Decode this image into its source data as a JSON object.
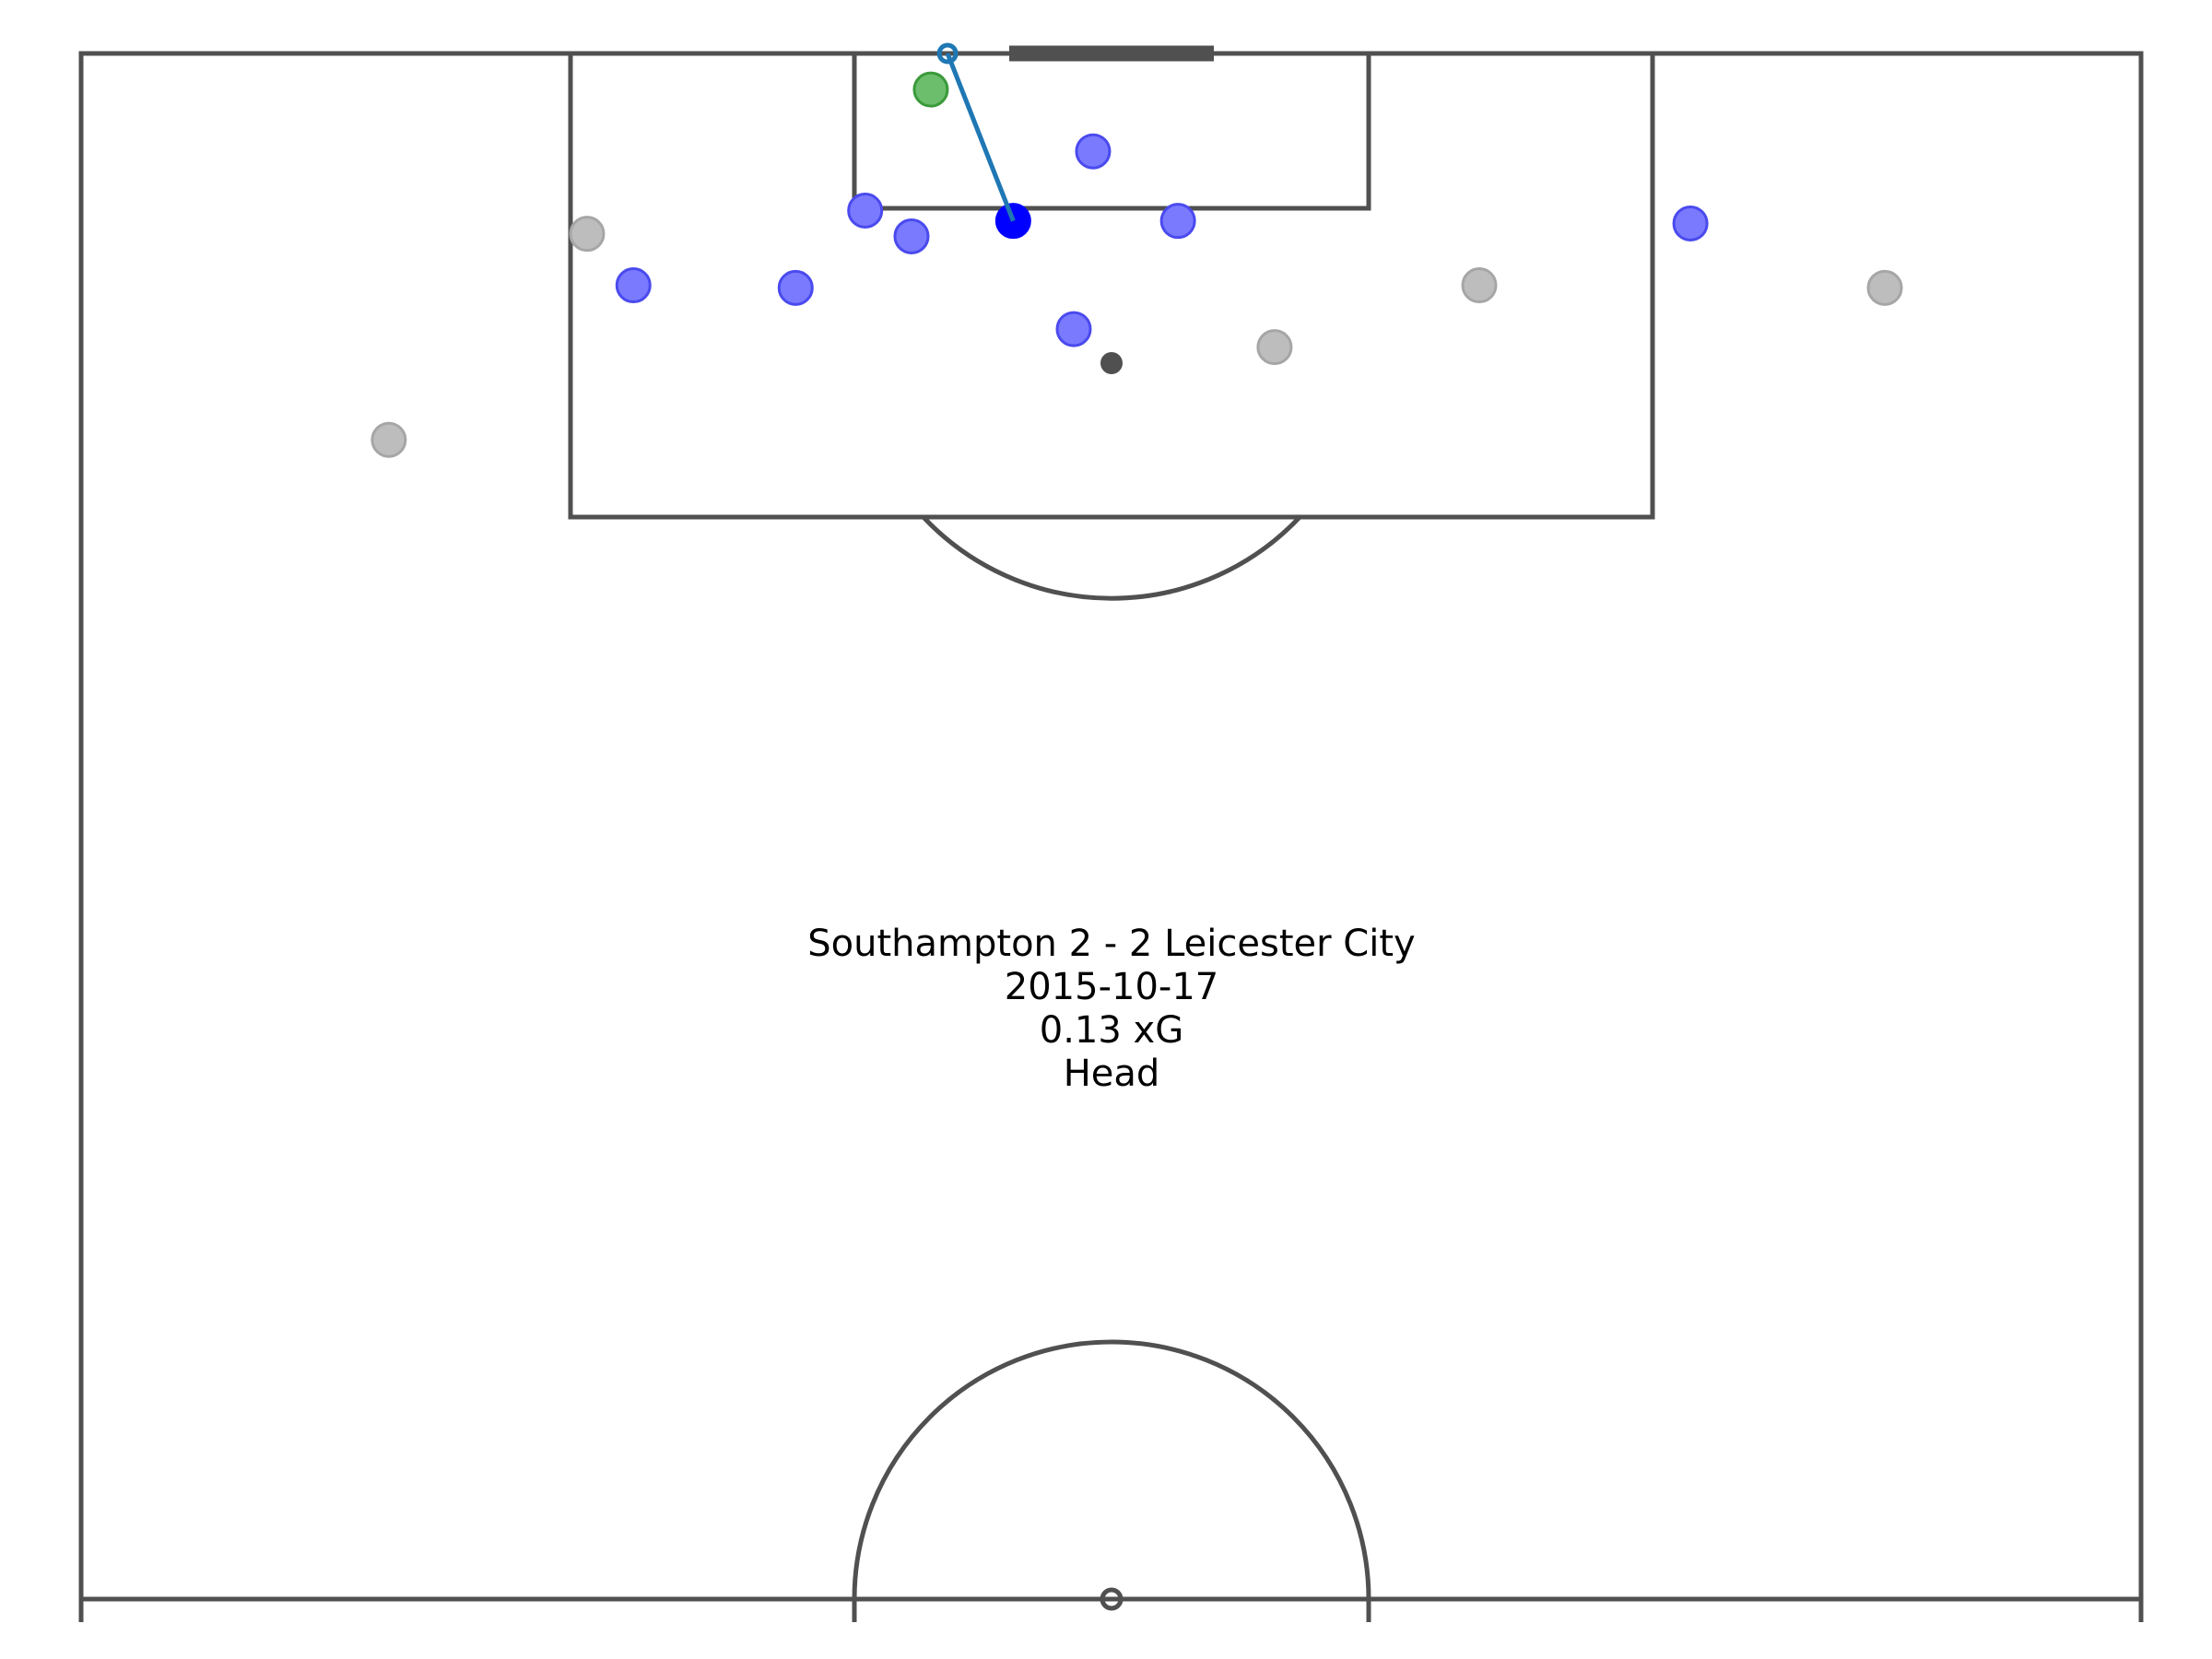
{
  "shot_info": {
    "match": "Southampton 2 - 2 Leicester City",
    "date": "2015-10-17",
    "xg_text": "0.13 xG",
    "body_part": "Head"
  },
  "colors": {
    "pitch_line": "#505050",
    "shooter": "#0000ff",
    "teammate": "#7a7aff",
    "opponent": "#bdbdbd",
    "goalkeeper": "#6cbd6c",
    "shot_line": "#1f77b4"
  },
  "chart_data": {
    "type": "scatter",
    "shot": {
      "start": [
        72.4,
        113.5
      ],
      "end": [
        67.3,
        120.0
      ]
    },
    "players": [
      {
        "role": "shooter",
        "x": 72.4,
        "y": 113.5
      },
      {
        "role": "goalkeeper",
        "x": 66.0,
        "y": 118.6
      },
      {
        "role": "teammate",
        "x": 64.5,
        "y": 112.9
      },
      {
        "role": "teammate",
        "x": 85.2,
        "y": 113.5
      },
      {
        "role": "teammate",
        "x": 60.9,
        "y": 113.9
      },
      {
        "role": "teammate",
        "x": 42.9,
        "y": 111.0
      },
      {
        "role": "teammate",
        "x": 77.1,
        "y": 109.3
      },
      {
        "role": "teammate",
        "x": 125.0,
        "y": 113.4
      },
      {
        "role": "teammate",
        "x": 55.5,
        "y": 110.9
      },
      {
        "role": "teammate",
        "x": 78.6,
        "y": 116.2
      },
      {
        "role": "opponent",
        "x": 92.7,
        "y": 108.6
      },
      {
        "role": "opponent",
        "x": 108.6,
        "y": 111.0
      },
      {
        "role": "opponent",
        "x": 39.3,
        "y": 113.0
      },
      {
        "role": "opponent",
        "x": 140.1,
        "y": 110.9
      },
      {
        "role": "opponent",
        "x": 23.9,
        "y": 105.0
      }
    ]
  }
}
